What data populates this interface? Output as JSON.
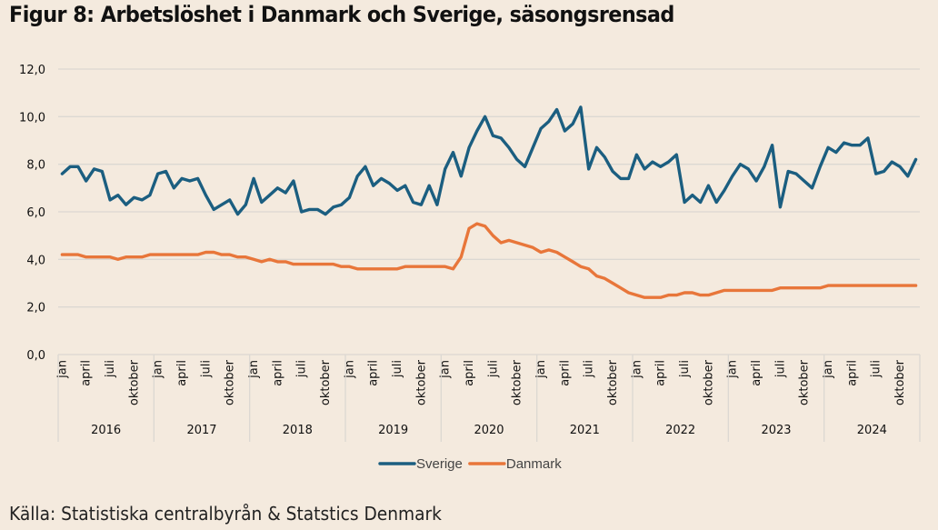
{
  "header": {
    "title": "Figur 8: Arbetslöshet i Danmark och Sverige, säsongsrensad"
  },
  "footer": {
    "source": "Källa: Statistiska centralbyrån & Statstics Denmark"
  },
  "colors": {
    "background": "#f4eade",
    "sverige": "#1b5e80",
    "danmark": "#e8763a",
    "grid": "#dcd8d2"
  },
  "chart_data": {
    "type": "line",
    "title": "Figur 8: Arbetslöshet i Danmark och Sverige, säsongsrensad",
    "xlabel": "",
    "ylabel": "",
    "ylim": [
      0,
      12
    ],
    "yticks": [
      "0,0",
      "2,0",
      "4,0",
      "6,0",
      "8,0",
      "10,0",
      "12,0"
    ],
    "ytick_values": [
      0,
      2,
      4,
      6,
      8,
      10,
      12
    ],
    "grid": true,
    "legend_position": "bottom-center",
    "years": [
      "2016",
      "2017",
      "2018",
      "2019",
      "2020",
      "2021",
      "2022",
      "2023",
      "2024"
    ],
    "month_labels": [
      {
        "label": "jan",
        "month": 0
      },
      {
        "label": "april",
        "month": 3
      },
      {
        "label": "juli",
        "month": 6
      },
      {
        "label": "oktober",
        "month": 9
      }
    ],
    "series": [
      {
        "name": "Sverige",
        "color": "#1b5e80",
        "values": [
          7.6,
          7.9,
          7.9,
          7.3,
          7.8,
          7.7,
          6.5,
          6.7,
          6.3,
          6.6,
          6.5,
          6.7,
          7.6,
          7.7,
          7.0,
          7.4,
          7.3,
          7.4,
          6.7,
          6.1,
          6.3,
          6.5,
          5.9,
          6.3,
          7.4,
          6.4,
          6.7,
          7.0,
          6.8,
          7.3,
          6.0,
          6.1,
          6.1,
          5.9,
          6.2,
          6.3,
          6.6,
          7.5,
          7.9,
          7.1,
          7.4,
          7.2,
          6.9,
          7.1,
          6.4,
          6.3,
          7.1,
          6.3,
          7.8,
          8.5,
          7.5,
          8.7,
          9.4,
          10.0,
          9.2,
          9.1,
          8.7,
          8.2,
          7.9,
          8.7,
          9.5,
          9.8,
          10.3,
          9.4,
          9.7,
          10.4,
          7.8,
          8.7,
          8.3,
          7.7,
          7.4,
          7.4,
          8.4,
          7.8,
          8.1,
          7.9,
          8.1,
          8.4,
          6.4,
          6.7,
          6.4,
          7.1,
          6.4,
          6.9,
          7.5,
          8.0,
          7.8,
          7.3,
          7.9,
          8.8,
          6.2,
          7.7,
          7.6,
          7.3,
          7.0,
          7.9,
          8.7,
          8.5,
          8.9,
          8.8,
          8.8,
          9.1,
          7.6,
          7.7,
          8.1,
          7.9,
          7.5,
          8.2
        ]
      },
      {
        "name": "Danmark",
        "color": "#e8763a",
        "values": [
          4.2,
          4.2,
          4.2,
          4.1,
          4.1,
          4.1,
          4.1,
          4.0,
          4.1,
          4.1,
          4.1,
          4.2,
          4.2,
          4.2,
          4.2,
          4.2,
          4.2,
          4.2,
          4.3,
          4.3,
          4.2,
          4.2,
          4.1,
          4.1,
          4.0,
          3.9,
          4.0,
          3.9,
          3.9,
          3.8,
          3.8,
          3.8,
          3.8,
          3.8,
          3.8,
          3.7,
          3.7,
          3.6,
          3.6,
          3.6,
          3.6,
          3.6,
          3.6,
          3.7,
          3.7,
          3.7,
          3.7,
          3.7,
          3.7,
          3.6,
          4.1,
          5.3,
          5.5,
          5.4,
          5.0,
          4.7,
          4.8,
          4.7,
          4.6,
          4.5,
          4.3,
          4.4,
          4.3,
          4.1,
          3.9,
          3.7,
          3.6,
          3.3,
          3.2,
          3.0,
          2.8,
          2.6,
          2.5,
          2.4,
          2.4,
          2.4,
          2.5,
          2.5,
          2.6,
          2.6,
          2.5,
          2.5,
          2.6,
          2.7,
          2.7,
          2.7,
          2.7,
          2.7,
          2.7,
          2.7,
          2.8,
          2.8,
          2.8,
          2.8,
          2.8,
          2.8,
          2.9,
          2.9,
          2.9,
          2.9,
          2.9,
          2.9,
          2.9,
          2.9,
          2.9,
          2.9,
          2.9,
          2.9
        ]
      }
    ]
  }
}
